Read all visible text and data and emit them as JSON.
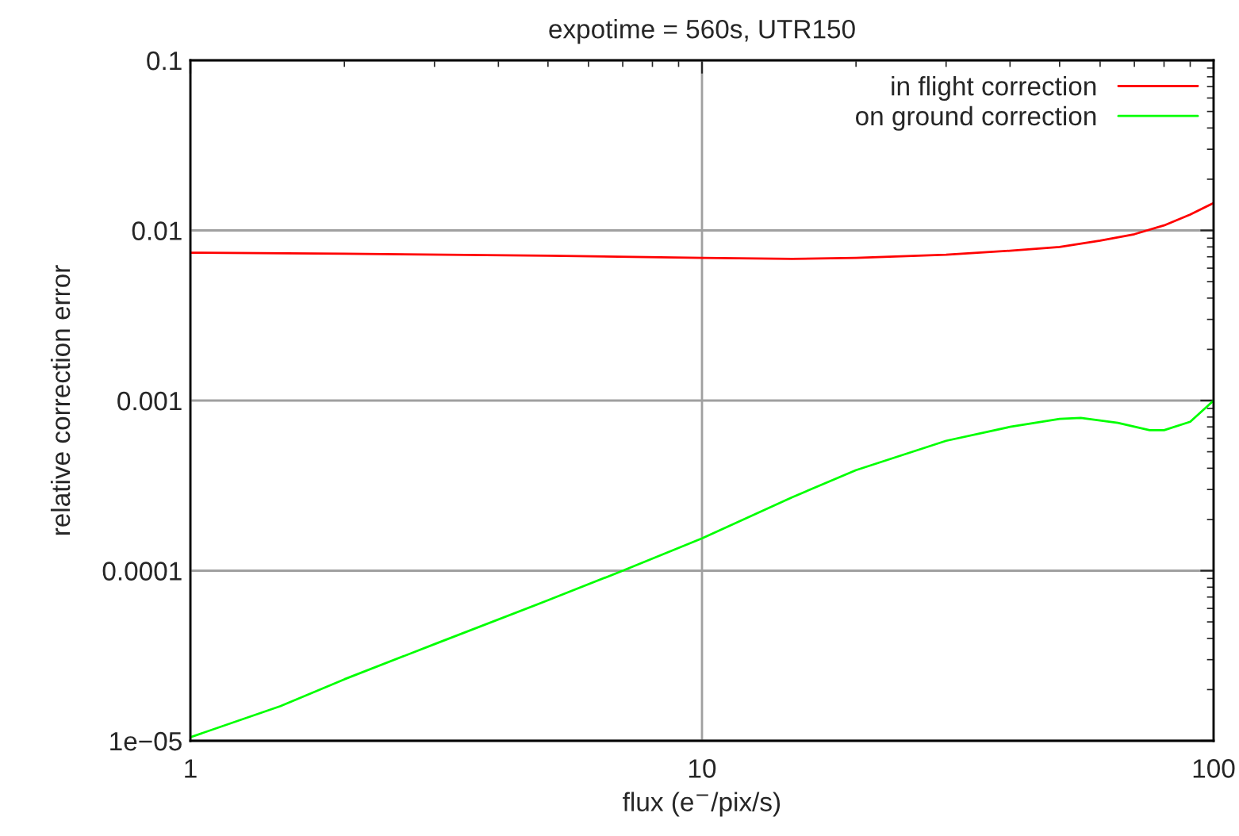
{
  "chart_data": {
    "type": "line",
    "title": "expotime = 560s, UTR150",
    "xlabel": "flux (e$^{−}$/pix/s)",
    "ylabel": "relative correction error",
    "log": "xy",
    "grid": true,
    "legend": "top right",
    "line_style": "solid",
    "marker": "none",
    "xlim": [
      1,
      100
    ],
    "xticks": [
      1,
      10,
      100
    ],
    "ylim": [
      1e-05,
      0.1
    ],
    "yticks": [
      {
        "value": 1e-05,
        "label": "1e−05"
      },
      {
        "value": 0.0001,
        "label": "0.0001"
      },
      {
        "value": 0.001,
        "label": "0.001"
      },
      {
        "value": 0.01,
        "label": "0.01"
      },
      {
        "value": 0.1,
        "label": "0.1"
      }
    ],
    "series": [
      {
        "name": "in flight correction",
        "color": "#ff0000",
        "x": [
          1,
          2,
          5,
          10,
          15,
          20,
          30,
          40,
          50,
          60,
          70,
          80,
          90,
          100
        ],
        "values": [
          0.0074,
          0.0073,
          0.0071,
          0.0069,
          0.0068,
          0.0069,
          0.0072,
          0.0076,
          0.008,
          0.0087,
          0.0095,
          0.0107,
          0.0124,
          0.0145
        ]
      },
      {
        "name": "on ground correction",
        "color": "#00ff00",
        "x": [
          1,
          1.5,
          2,
          3,
          5,
          7,
          10,
          15,
          20,
          30,
          40,
          50,
          55,
          65,
          75,
          80,
          90,
          100
        ],
        "values": [
          1.05e-05,
          1.6e-05,
          2.3e-05,
          3.7e-05,
          6.7e-05,
          0.0001,
          0.000155,
          0.00027,
          0.00039,
          0.00058,
          0.0007,
          0.00078,
          0.00079,
          0.00074,
          0.00067,
          0.00067,
          0.00075,
          0.001
        ]
      }
    ]
  }
}
